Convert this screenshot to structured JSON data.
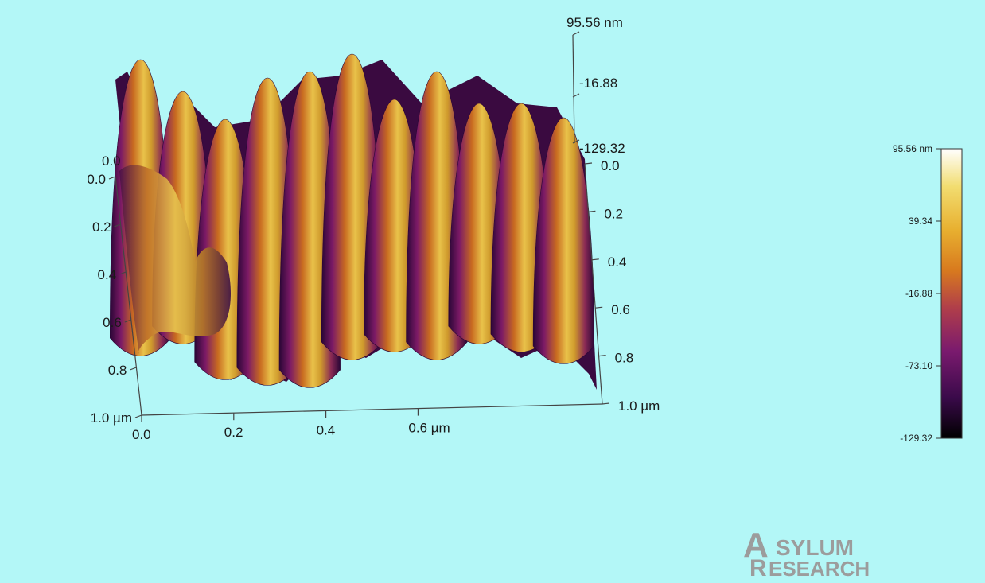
{
  "chart_data": {
    "type": "surface3d",
    "title": "",
    "x_axis": {
      "ticks": [
        "0.0",
        "0.2",
        "0.4",
        "0.6 µm"
      ]
    },
    "y_axis_left": {
      "ticks": [
        "0.0",
        "0.2",
        "0.4",
        "0.6",
        "0.8",
        "1.0 µm"
      ]
    },
    "y_axis_right": {
      "ticks": [
        "0.0",
        "0.2",
        "0.4",
        "0.6",
        "0.8",
        "1.0 µm"
      ]
    },
    "z_axis": {
      "ticks": [
        "95.56 nm",
        "-16.88",
        "-129.32"
      ],
      "range": [
        -129.32,
        95.56
      ],
      "unit": "nm"
    },
    "x_range_um": [
      0,
      1.0
    ],
    "y_range_um": [
      0,
      1.0
    ],
    "ridges": {
      "count": 11,
      "period_um": 0.09
    },
    "colorscale": {
      "ticks": [
        "95.56 nm",
        "39.34",
        "-16.88",
        "-73.10",
        "-129.32"
      ],
      "range": [
        -129.32,
        95.56
      ],
      "colors": [
        "#000000",
        "#3a0a4a",
        "#7a1a6e",
        "#b03e4a",
        "#d87a1e",
        "#e8b030",
        "#f2dd70",
        "#ffffff"
      ]
    },
    "corner_label_left_top": "0.0"
  },
  "logo": {
    "line1": "SYLUM",
    "line2": "ESEARCH",
    "initial1": "A",
    "initial2": "R"
  }
}
